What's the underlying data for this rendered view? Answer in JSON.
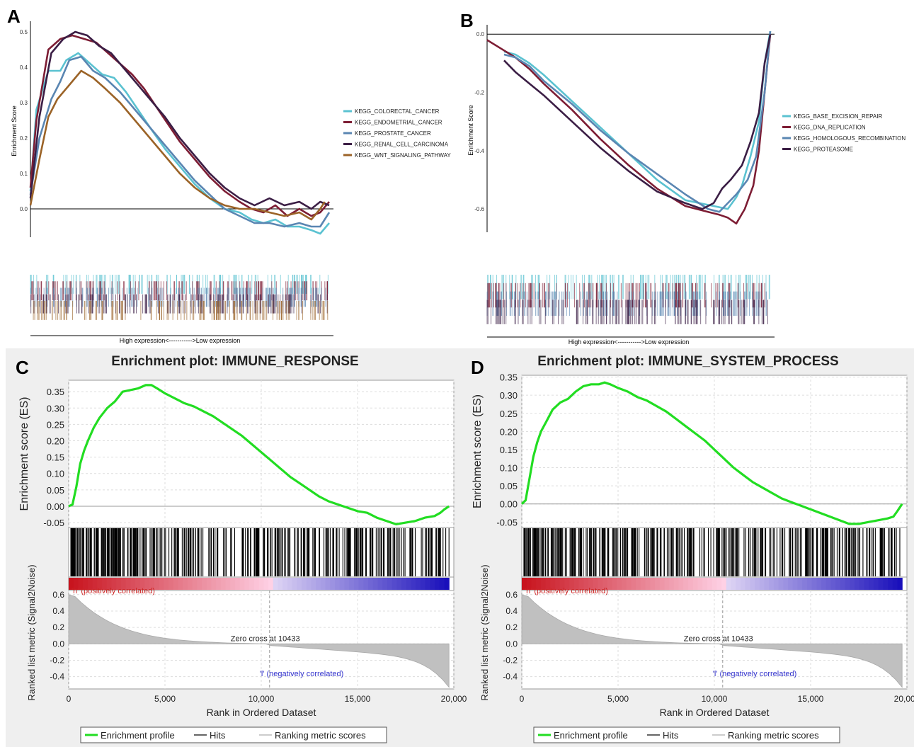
{
  "panels": {
    "A": {
      "letter": "A"
    },
    "B": {
      "letter": "B"
    },
    "C": {
      "letter": "C"
    },
    "D": {
      "letter": "D"
    }
  },
  "chart_data": [
    {
      "id": "A",
      "type": "line",
      "ylabel": "Enrichment Score",
      "yticks": [
        0.0,
        0.1,
        0.2,
        0.3,
        0.4,
        0.5
      ],
      "ylim": [
        -0.08,
        0.52
      ],
      "x_axis_caption": "High expression<----------->Low expression",
      "legend_position": "right",
      "series": [
        {
          "name": "KEGG_COLORECTAL_CANCER",
          "color": "#5bc2d1",
          "x": [
            0,
            0.02,
            0.06,
            0.1,
            0.12,
            0.16,
            0.2,
            0.24,
            0.28,
            0.32,
            0.36,
            0.4,
            0.45,
            0.5,
            0.55,
            0.6,
            0.65,
            0.7,
            0.74,
            0.78,
            0.82,
            0.86,
            0.9,
            0.94,
            0.97,
            0.99,
            1.0
          ],
          "y": [
            0.05,
            0.28,
            0.39,
            0.39,
            0.42,
            0.44,
            0.41,
            0.38,
            0.37,
            0.33,
            0.28,
            0.23,
            0.17,
            0.12,
            0.07,
            0.03,
            0.0,
            -0.01,
            -0.03,
            -0.04,
            -0.03,
            -0.05,
            -0.05,
            -0.06,
            -0.07,
            -0.05,
            -0.04
          ]
        },
        {
          "name": "KEGG_ENDOMETRIAL_CANCER",
          "color": "#7d1d34",
          "x": [
            0,
            0.02,
            0.06,
            0.1,
            0.14,
            0.18,
            0.22,
            0.26,
            0.3,
            0.34,
            0.38,
            0.42,
            0.46,
            0.5,
            0.55,
            0.6,
            0.65,
            0.7,
            0.74,
            0.78,
            0.82,
            0.86,
            0.9,
            0.94,
            0.97,
            1.0
          ],
          "y": [
            0.06,
            0.25,
            0.45,
            0.48,
            0.49,
            0.48,
            0.47,
            0.44,
            0.41,
            0.38,
            0.34,
            0.29,
            0.24,
            0.19,
            0.14,
            0.09,
            0.05,
            0.02,
            0.0,
            -0.01,
            0.01,
            -0.02,
            0.0,
            -0.02,
            -0.01,
            0.02
          ]
        },
        {
          "name": "KEGG_PROSTATE_CANCER",
          "color": "#5a86b2",
          "x": [
            0,
            0.03,
            0.07,
            0.1,
            0.13,
            0.17,
            0.21,
            0.25,
            0.3,
            0.35,
            0.4,
            0.45,
            0.5,
            0.55,
            0.6,
            0.65,
            0.7,
            0.75,
            0.8,
            0.85,
            0.9,
            0.94,
            0.97,
            1.0
          ],
          "y": [
            0.04,
            0.2,
            0.31,
            0.36,
            0.42,
            0.43,
            0.39,
            0.37,
            0.33,
            0.28,
            0.23,
            0.18,
            0.13,
            0.08,
            0.04,
            0.0,
            -0.02,
            -0.04,
            -0.04,
            -0.05,
            -0.04,
            -0.05,
            -0.05,
            -0.01
          ]
        },
        {
          "name": "KEGG_RENAL_CELL_CARCINOMA",
          "color": "#3b1e45",
          "x": [
            0,
            0.03,
            0.07,
            0.11,
            0.15,
            0.19,
            0.23,
            0.27,
            0.31,
            0.35,
            0.4,
            0.45,
            0.5,
            0.55,
            0.6,
            0.65,
            0.7,
            0.75,
            0.8,
            0.85,
            0.9,
            0.94,
            0.97,
            1.0
          ],
          "y": [
            0.03,
            0.26,
            0.44,
            0.48,
            0.5,
            0.49,
            0.46,
            0.44,
            0.4,
            0.36,
            0.31,
            0.26,
            0.2,
            0.15,
            0.1,
            0.06,
            0.03,
            0.01,
            0.03,
            0.01,
            0.02,
            0.0,
            0.02,
            0.01
          ]
        },
        {
          "name": "KEGG_WNT_SIGNALING_PATHWAY",
          "color": "#9b6327",
          "x": [
            0,
            0.03,
            0.06,
            0.09,
            0.13,
            0.17,
            0.21,
            0.25,
            0.3,
            0.35,
            0.4,
            0.45,
            0.5,
            0.55,
            0.6,
            0.65,
            0.7,
            0.75,
            0.8,
            0.85,
            0.9,
            0.94,
            0.97,
            0.985
          ],
          "y": [
            0.01,
            0.14,
            0.26,
            0.31,
            0.35,
            0.39,
            0.37,
            0.34,
            0.3,
            0.25,
            0.2,
            0.15,
            0.1,
            0.06,
            0.03,
            0.01,
            0.0,
            0.0,
            -0.01,
            -0.02,
            -0.01,
            -0.03,
            0.0,
            0.02
          ]
        }
      ]
    },
    {
      "id": "B",
      "type": "line",
      "ylabel": "Enrichment Score",
      "yticks": [
        0.0,
        -0.2,
        -0.4,
        -0.6
      ],
      "ylim": [
        -0.68,
        0.02
      ],
      "x_axis_caption": "High expression<----------->Low expression",
      "legend_position": "right",
      "series": [
        {
          "name": "KEGG_BASE_EXCISION_REPAIR",
          "color": "#5bc2d1",
          "x": [
            0.06,
            0.1,
            0.15,
            0.2,
            0.3,
            0.4,
            0.5,
            0.6,
            0.7,
            0.75,
            0.8,
            0.85,
            0.88,
            0.9,
            0.93,
            0.96,
            0.98,
            1.0
          ],
          "y": [
            -0.06,
            -0.07,
            -0.1,
            -0.14,
            -0.23,
            -0.32,
            -0.41,
            -0.5,
            -0.57,
            -0.58,
            -0.59,
            -0.6,
            -0.56,
            -0.52,
            -0.42,
            -0.3,
            -0.1,
            0.01
          ]
        },
        {
          "name": "KEGG_DNA_REPLICATION",
          "color": "#7d1d34",
          "x": [
            0,
            0.05,
            0.1,
            0.15,
            0.2,
            0.3,
            0.4,
            0.5,
            0.6,
            0.7,
            0.78,
            0.82,
            0.85,
            0.88,
            0.91,
            0.94,
            0.96,
            0.98,
            1.0
          ],
          "y": [
            -0.02,
            -0.05,
            -0.08,
            -0.12,
            -0.17,
            -0.26,
            -0.36,
            -0.45,
            -0.53,
            -0.59,
            -0.61,
            -0.62,
            -0.63,
            -0.65,
            -0.6,
            -0.52,
            -0.4,
            -0.2,
            0.0
          ]
        },
        {
          "name": "KEGG_HOMOLOGOUS_RECOMBINATION",
          "color": "#5a86b2",
          "x": [
            0.06,
            0.1,
            0.15,
            0.2,
            0.3,
            0.4,
            0.5,
            0.6,
            0.7,
            0.78,
            0.82,
            0.85,
            0.88,
            0.92,
            0.95,
            0.98,
            1.0
          ],
          "y": [
            -0.07,
            -0.08,
            -0.11,
            -0.16,
            -0.24,
            -0.33,
            -0.41,
            -0.48,
            -0.55,
            -0.6,
            -0.61,
            -0.58,
            -0.55,
            -0.5,
            -0.42,
            -0.2,
            0.01
          ]
        },
        {
          "name": "KEGG_PROTEASOME",
          "color": "#3b1e45",
          "x": [
            0.06,
            0.1,
            0.15,
            0.2,
            0.3,
            0.4,
            0.5,
            0.6,
            0.7,
            0.76,
            0.8,
            0.83,
            0.86,
            0.9,
            0.93,
            0.96,
            0.98,
            1.0
          ],
          "y": [
            -0.09,
            -0.13,
            -0.17,
            -0.21,
            -0.3,
            -0.39,
            -0.47,
            -0.54,
            -0.58,
            -0.6,
            -0.58,
            -0.53,
            -0.5,
            -0.45,
            -0.37,
            -0.27,
            -0.1,
            0.0
          ]
        }
      ]
    },
    {
      "id": "C",
      "type": "line",
      "title": "Enrichment plot: IMMUNE_RESPONSE",
      "ylabel": "Enrichment score (ES)",
      "ylabel2": "Ranked list metric (Signal2Noise)",
      "xlabel": "Rank in Ordered Dataset",
      "xlim": [
        0,
        20000
      ],
      "xticks": [
        0,
        5000,
        10000,
        15000,
        20000
      ],
      "xtick_labels": [
        "0",
        "5,000",
        "10,000",
        "15,000",
        "20,000"
      ],
      "ylim": [
        -0.065,
        0.385
      ],
      "yticks": [
        0.35,
        0.3,
        0.25,
        0.2,
        0.15,
        0.1,
        0.05,
        0.0,
        -0.05
      ],
      "ytick_labels": [
        "0.35",
        "0.30",
        "0.25",
        "0.20",
        "0.15",
        "0.10",
        "0.05",
        "0.00",
        "-0.05"
      ],
      "metric_ylim": [
        -0.55,
        0.65
      ],
      "metric_yticks": [
        0.6,
        0.4,
        0.2,
        0.0,
        -0.2,
        -0.4
      ],
      "metric_ytick_labels": [
        "0.6",
        "0.4",
        "0.2",
        "0.0",
        "-0.2",
        "-0.4"
      ],
      "dataset_size": 19750,
      "zero_cross": 10433,
      "zero_cross_label": "Zero cross at 10433",
      "pos_label": "'h' (positively correlated)",
      "neg_label": "'l' (negatively correlated)",
      "legend": [
        "Enrichment profile",
        "Hits",
        "Ranking metric scores"
      ],
      "colors": {
        "profile": "#22dd22",
        "pos": "#cc2222",
        "neg": "#3333cc"
      },
      "x": [
        0,
        200,
        400,
        600,
        800,
        1000,
        1300,
        1600,
        2000,
        2400,
        2800,
        3200,
        3600,
        4000,
        4300,
        4600,
        5000,
        5500,
        6000,
        6500,
        7000,
        7500,
        8000,
        8500,
        9000,
        9500,
        10000,
        10500,
        11000,
        11500,
        12000,
        12500,
        13000,
        13500,
        14000,
        14500,
        15000,
        15500,
        16000,
        16500,
        17000,
        17500,
        18000,
        18500,
        19000,
        19300,
        19500,
        19750
      ],
      "y": [
        0.0,
        0.005,
        0.06,
        0.13,
        0.17,
        0.2,
        0.24,
        0.27,
        0.3,
        0.32,
        0.35,
        0.355,
        0.36,
        0.37,
        0.37,
        0.36,
        0.345,
        0.33,
        0.315,
        0.305,
        0.29,
        0.275,
        0.255,
        0.235,
        0.215,
        0.19,
        0.165,
        0.14,
        0.115,
        0.09,
        0.07,
        0.05,
        0.03,
        0.015,
        0.005,
        -0.005,
        -0.015,
        -0.02,
        -0.035,
        -0.045,
        -0.055,
        -0.05,
        -0.045,
        -0.035,
        -0.03,
        -0.02,
        -0.01,
        0.0
      ]
    },
    {
      "id": "D",
      "type": "line",
      "title": "Enrichment plot: IMMUNE_SYSTEM_PROCESS",
      "ylabel": "Enrichment score (ES)",
      "ylabel2": "Ranked list metric (Signal2Noise)",
      "xlabel": "Rank in Ordered Dataset",
      "xlim": [
        0,
        20000
      ],
      "xticks": [
        0,
        5000,
        10000,
        15000,
        20000
      ],
      "xtick_labels": [
        "0",
        "5,000",
        "10,000",
        "15,000",
        "20,000"
      ],
      "ylim": [
        -0.065,
        0.355
      ],
      "yticks": [
        0.35,
        0.3,
        0.25,
        0.2,
        0.15,
        0.1,
        0.05,
        0.0,
        -0.05
      ],
      "ytick_labels": [
        "0.35",
        "0.30",
        "0.25",
        "0.20",
        "0.15",
        "0.10",
        "0.05",
        "0.00",
        "-0.05"
      ],
      "metric_ylim": [
        -0.55,
        0.65
      ],
      "metric_yticks": [
        0.6,
        0.4,
        0.2,
        0.0,
        -0.2,
        -0.4
      ],
      "metric_ytick_labels": [
        "0.6",
        "0.4",
        "0.2",
        "0.0",
        "-0.2",
        "-0.4"
      ],
      "dataset_size": 19750,
      "zero_cross": 10433,
      "zero_cross_label": "Zero cross at 10433",
      "pos_label": "'h' (positively correlated)",
      "neg_label": "'l' (negatively correlated)",
      "legend": [
        "Enrichment profile",
        "Hits",
        "Ranking metric scores"
      ],
      "colors": {
        "profile": "#22dd22",
        "pos": "#cc2222",
        "neg": "#3333cc"
      },
      "x": [
        0,
        200,
        400,
        600,
        800,
        1000,
        1300,
        1600,
        2000,
        2400,
        2800,
        3200,
        3600,
        4000,
        4300,
        4600,
        5000,
        5500,
        6000,
        6500,
        7000,
        7500,
        8000,
        8500,
        9000,
        9500,
        10000,
        10500,
        11000,
        11500,
        12000,
        12500,
        13000,
        13500,
        14000,
        14500,
        15000,
        15500,
        16000,
        16500,
        17000,
        17500,
        18000,
        18500,
        19000,
        19300,
        19500,
        19750
      ],
      "y": [
        0.0,
        0.01,
        0.07,
        0.13,
        0.17,
        0.2,
        0.23,
        0.26,
        0.28,
        0.29,
        0.31,
        0.325,
        0.33,
        0.33,
        0.335,
        0.33,
        0.32,
        0.31,
        0.295,
        0.285,
        0.27,
        0.255,
        0.235,
        0.215,
        0.195,
        0.175,
        0.15,
        0.125,
        0.1,
        0.08,
        0.06,
        0.045,
        0.03,
        0.015,
        0.005,
        -0.005,
        -0.015,
        -0.025,
        -0.035,
        -0.045,
        -0.055,
        -0.055,
        -0.05,
        -0.045,
        -0.04,
        -0.035,
        -0.02,
        0.0
      ]
    }
  ]
}
